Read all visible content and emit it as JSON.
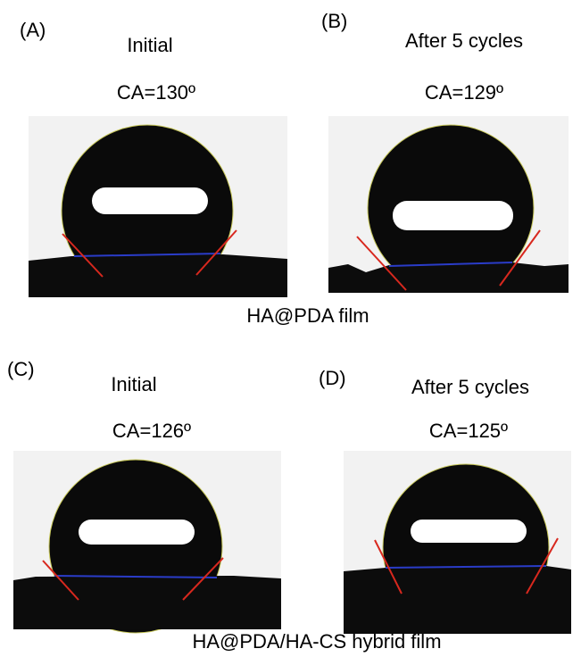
{
  "panels": [
    {
      "label": "(A)",
      "title": "Initial",
      "ca": "CA=130º"
    },
    {
      "label": "(B)",
      "title": "After 5 cycles",
      "ca": "CA=129º"
    },
    {
      "label": "(C)",
      "title": "Initial",
      "ca": "CA=126º"
    },
    {
      "label": "(D)",
      "title": "After 5 cycles",
      "ca": "CA=125º"
    }
  ],
  "captions": [
    "HA@PDA film",
    "HA@PDA/HA-CS hybrid film"
  ]
}
